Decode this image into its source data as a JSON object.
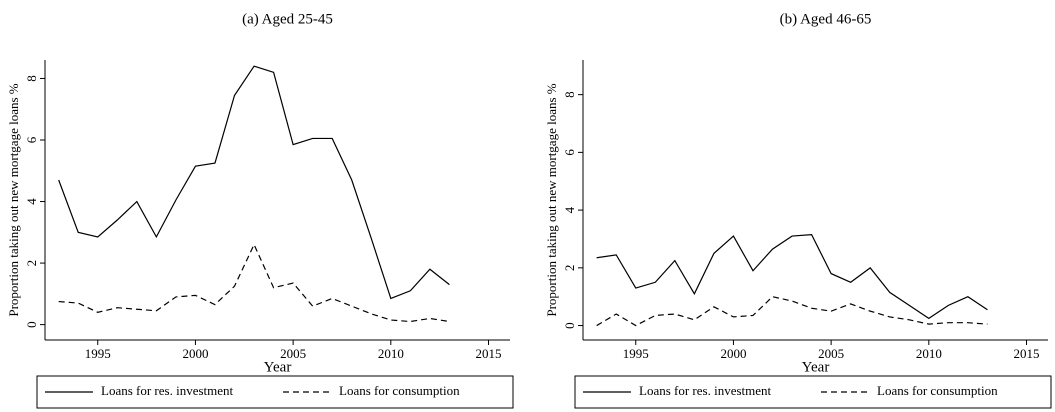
{
  "chart_data": [
    {
      "type": "line",
      "title": "(a) Aged 25-45",
      "xlabel": "Year",
      "ylabel": "Proportion taking out new mortgage loans %",
      "x": [
        1993,
        1994,
        1995,
        1996,
        1997,
        1998,
        1999,
        2000,
        2001,
        2002,
        2003,
        2004,
        2005,
        2006,
        2007,
        2008,
        2009,
        2010,
        2011,
        2012,
        2013
      ],
      "series": [
        {
          "name": "Loans for res. investment",
          "color": "#000000",
          "line_style": "solid",
          "values": [
            4.7,
            3.0,
            2.85,
            3.4,
            4.0,
            2.85,
            4.05,
            5.15,
            5.25,
            7.45,
            8.4,
            8.2,
            5.85,
            6.05,
            6.05,
            4.7,
            2.8,
            0.85,
            1.1,
            1.8,
            1.3
          ]
        },
        {
          "name": "Loans for consumption",
          "color": "#000000",
          "line_style": "dashed",
          "values": [
            0.75,
            0.7,
            0.4,
            0.55,
            0.5,
            0.45,
            0.9,
            0.95,
            0.65,
            1.25,
            2.6,
            1.2,
            1.35,
            0.6,
            0.85,
            0.6,
            0.35,
            0.15,
            0.1,
            0.2,
            0.1
          ]
        }
      ],
      "xlim": [
        1992.3,
        2016.1
      ],
      "xticks": [
        1995,
        2000,
        2005,
        2010,
        2015
      ],
      "ylim": [
        -0.5,
        8.6
      ],
      "yticks": [
        0,
        2,
        4,
        6,
        8
      ],
      "grid": false,
      "legend": "bottom"
    },
    {
      "type": "line",
      "title": "(b) Aged 46-65",
      "xlabel": "Year",
      "ylabel": "Proportion taking out new mortgage loans %",
      "x": [
        1993,
        1994,
        1995,
        1996,
        1997,
        1998,
        1999,
        2000,
        2001,
        2002,
        2003,
        2004,
        2005,
        2006,
        2007,
        2008,
        2009,
        2010,
        2011,
        2012,
        2013
      ],
      "series": [
        {
          "name": "Loans for res. investment",
          "color": "#000000",
          "line_style": "solid",
          "values": [
            2.35,
            2.45,
            1.3,
            1.5,
            2.25,
            1.1,
            2.5,
            3.1,
            1.9,
            2.65,
            3.1,
            3.15,
            1.8,
            1.5,
            2.0,
            1.15,
            0.7,
            0.25,
            0.7,
            1.0,
            0.55
          ]
        },
        {
          "name": "Loans for consumption",
          "color": "#000000",
          "line_style": "dashed",
          "values": [
            0.0,
            0.4,
            0.0,
            0.35,
            0.4,
            0.2,
            0.65,
            0.3,
            0.35,
            1.0,
            0.85,
            0.6,
            0.5,
            0.75,
            0.5,
            0.3,
            0.2,
            0.05,
            0.1,
            0.1,
            0.05
          ]
        }
      ],
      "xlim": [
        1992.3,
        2016.1
      ],
      "xticks": [
        1995,
        2000,
        2005,
        2010,
        2015
      ],
      "ylim": [
        -0.5,
        9.2
      ],
      "yticks": [
        0,
        2,
        4,
        6,
        8
      ],
      "grid": false,
      "legend": "bottom"
    }
  ]
}
